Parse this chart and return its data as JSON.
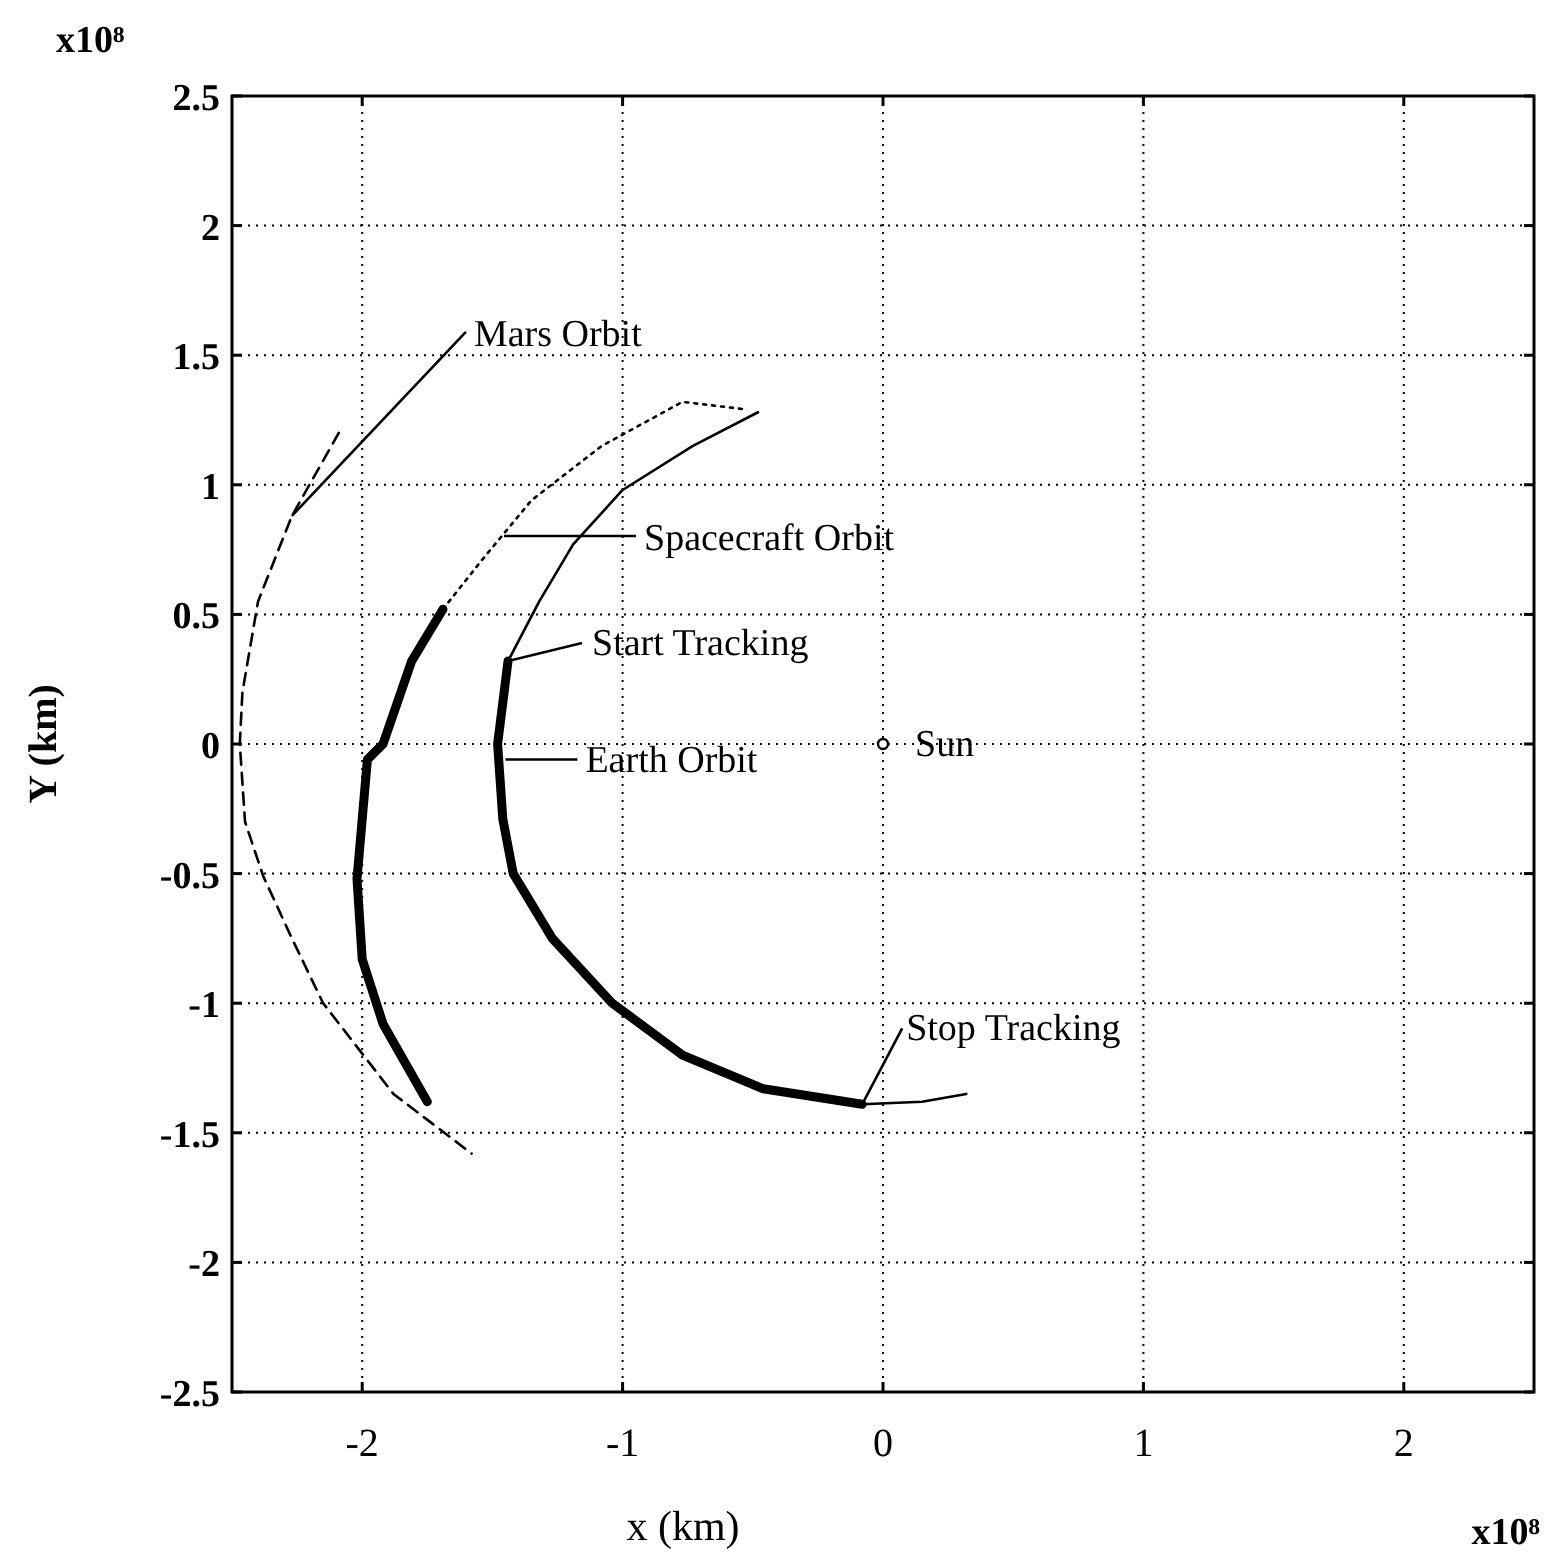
{
  "chart_data": {
    "type": "line",
    "xlabel": "x (km)",
    "ylabel": "Y (km)",
    "xlim": [
      -2.5,
      2.5
    ],
    "xticks": [
      -2,
      -1,
      0,
      1,
      2
    ],
    "ylim": [
      -2.5,
      2.5
    ],
    "yticks": [
      -2.5,
      -2,
      -1.5,
      -1,
      -0.5,
      0,
      0.5,
      1,
      1.5,
      2,
      2.5
    ],
    "grid": true,
    "series": [
      {
        "color": "#000000",
        "line_style": "dashed",
        "x": [
          -2.09,
          -2.27,
          -2.4,
          -2.46,
          -2.47,
          -2.45,
          -2.38,
          -2.27,
          -2.15,
          -1.88,
          -1.58
        ],
        "values": [
          1.2,
          0.88,
          0.55,
          0.2,
          0,
          -0.3,
          -0.51,
          -0.75,
          -1.0,
          -1.35,
          -1.58
        ]
      },
      {
        "color": "#000000",
        "line_style": "dotted",
        "x": [
          -1.69,
          -1.54,
          -1.35,
          -1.08,
          -0.77,
          -0.52
        ],
        "values": [
          0.52,
          0.71,
          0.94,
          1.15,
          1.32,
          1.29
        ]
      },
      {
        "type": "line",
        "color": "#000000",
        "line_style": "solid",
        "x": [
          -1.69,
          -1.81,
          -1.92,
          -1.98,
          -2.02,
          -2.0,
          -1.92,
          -1.75
        ],
        "values": [
          0.52,
          0.32,
          0,
          -0.06,
          -0.52,
          -0.83,
          -1.08,
          -1.38
        ]
      },
      {
        "type": "line",
        "color": "#000000",
        "line_style": "solid",
        "x": [
          -0.48,
          -0.73,
          -1.0,
          -1.19,
          -1.32,
          -1.44
        ],
        "values": [
          1.28,
          1.15,
          0.98,
          0.77,
          0.55,
          0.32
        ]
      },
      {
        "type": "line",
        "color": "#000000",
        "line_style": "solid",
        "x": [
          -1.44,
          -1.48,
          -1.46,
          -1.42,
          -1.27,
          -1.04,
          -0.77,
          -0.46,
          -0.08
        ],
        "values": [
          0.32,
          0,
          -0.29,
          -0.5,
          -0.75,
          -1.0,
          -1.2,
          -1.33,
          -1.39
        ]
      },
      {
        "type": "line",
        "color": "#000000",
        "line_style": "solid",
        "x": [
          -0.08,
          0.15,
          0.32
        ],
        "values": [
          -1.39,
          -1.38,
          -1.35
        ]
      },
      {
        "type": "scatter",
        "color": "#000000",
        "marker": "circle",
        "x": [
          0
        ],
        "values": [
          0
        ]
      }
    ],
    "annotations": [
      {
        "text": "Mars Orbit",
        "x": -2.27,
        "y": 0.88
      },
      "Spacecraft Orbit",
      {
        "text": "Start Tracking",
        "x": -1.44,
        "y": 0.32
      },
      {
        "text": "Earth Orbit",
        "x": -1.45,
        "y": -0.06
      },
      {
        "text": "Stop Tracking",
        "x": -0.08,
        "y": -1.39
      },
      {
        "text": "Sun",
        "x": 0,
        "y": 0
      },
      "x10⁸",
      "x10⁸"
    ]
  }
}
